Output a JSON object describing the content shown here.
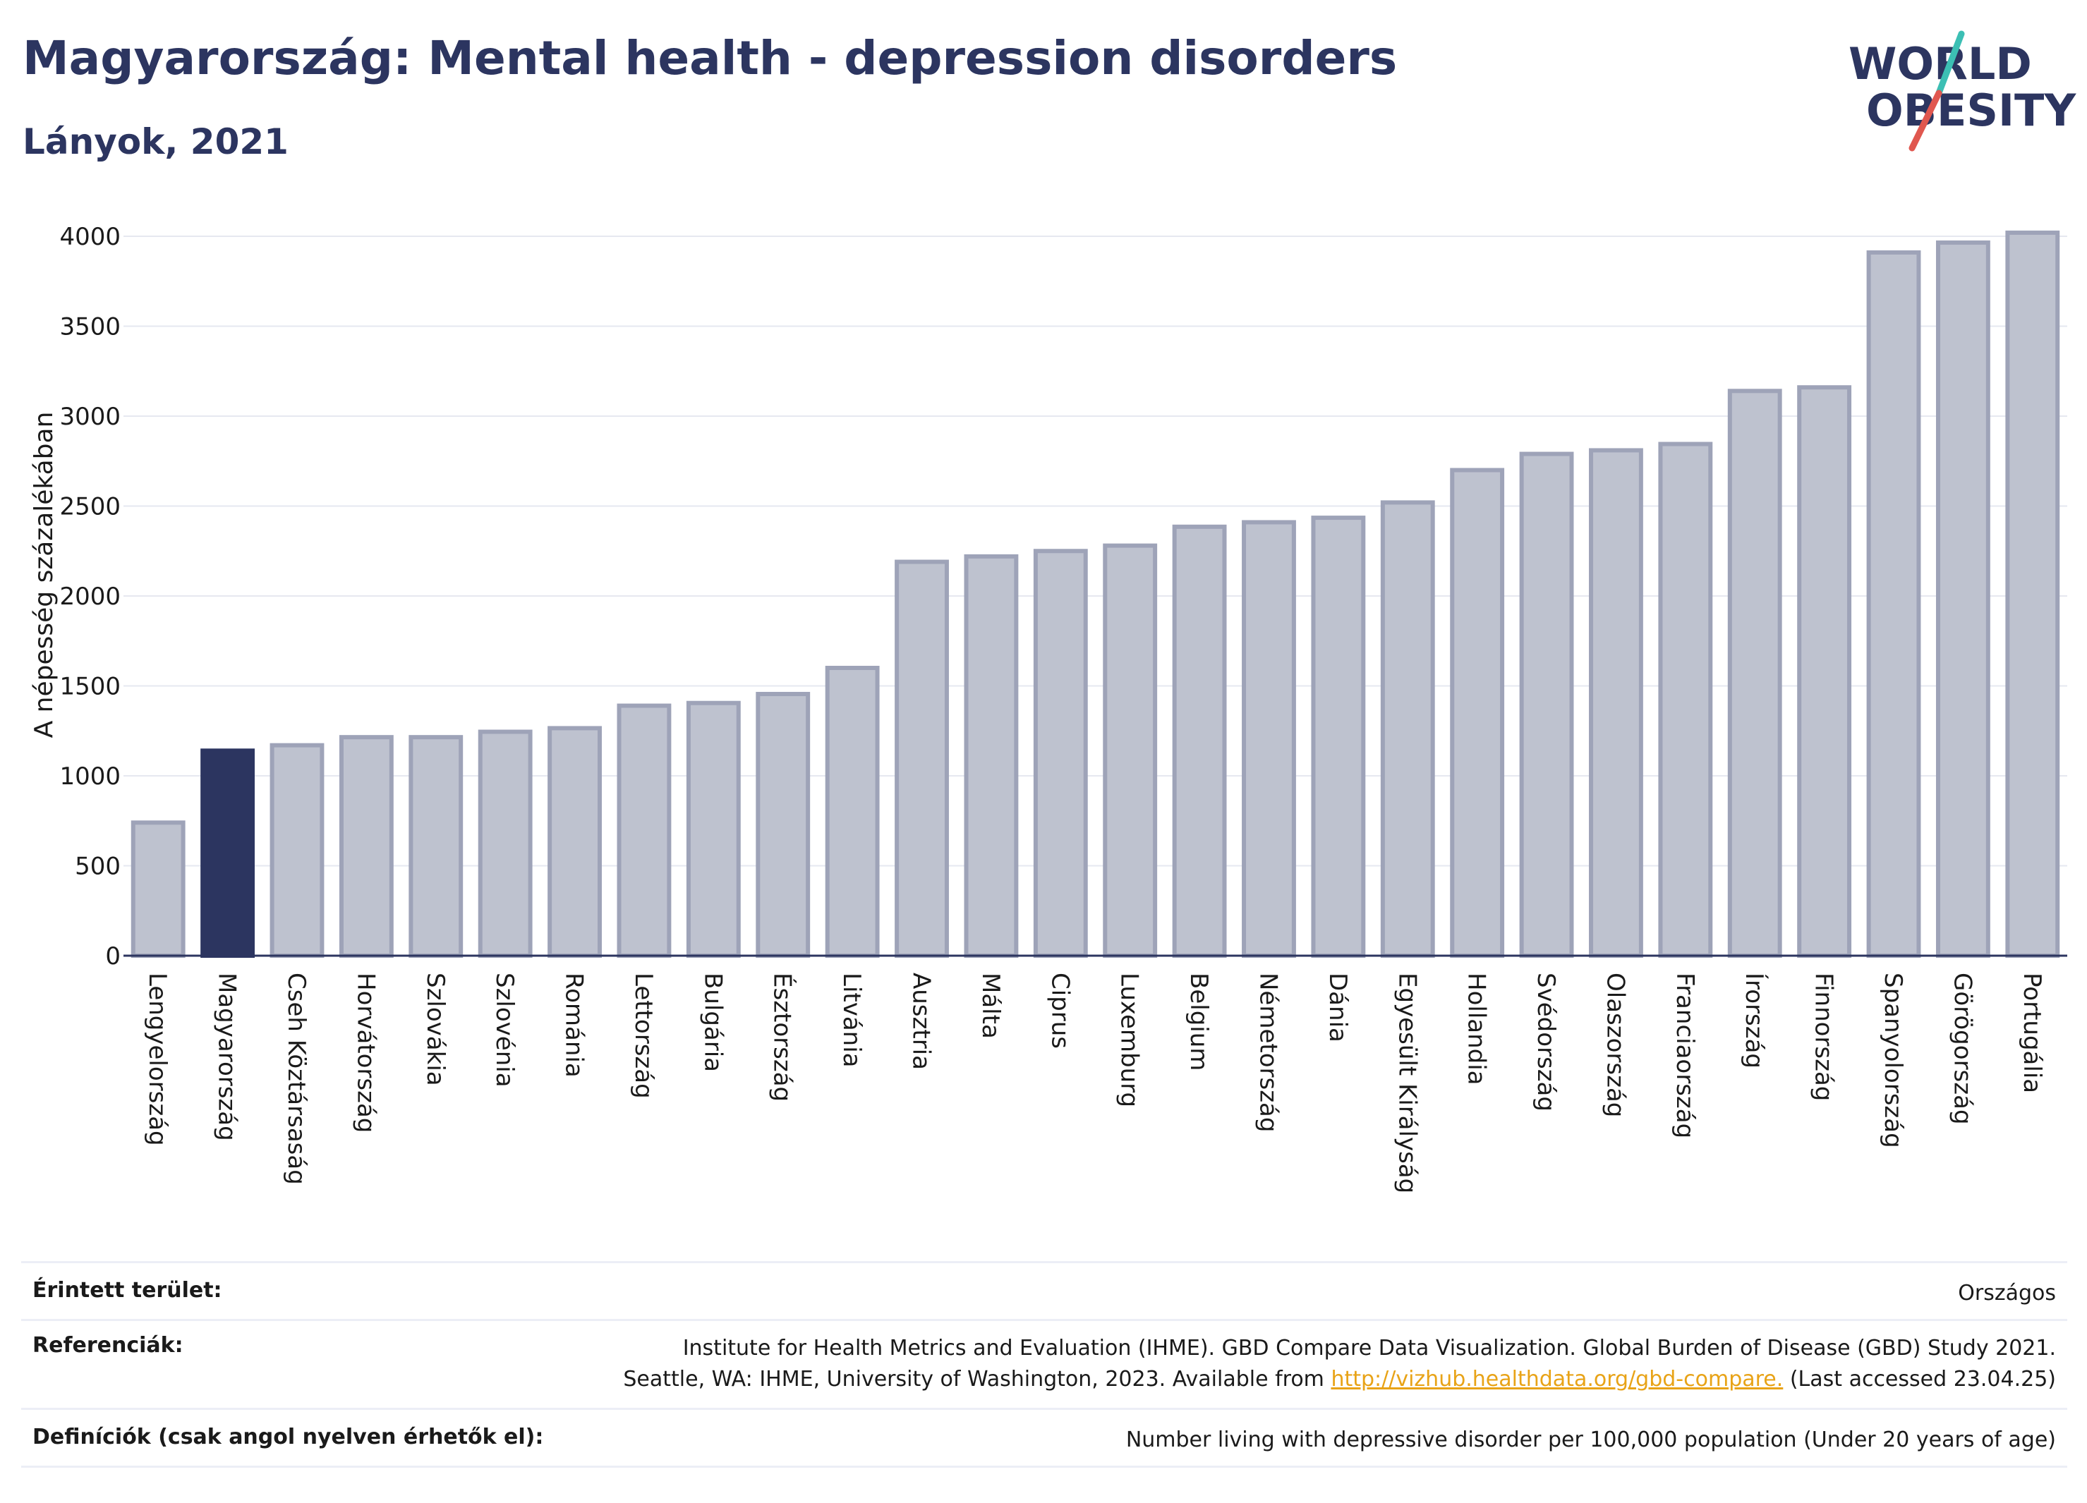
{
  "header": {
    "title": "Magyarország: Mental health - depression disorders",
    "subtitle": "Lányok, 2021"
  },
  "logo": {
    "line1": "WORLD",
    "line2": "OBESITY",
    "accent_teal": "#3cbfb4",
    "accent_red": "#e0574f",
    "text_color": "#2c3560"
  },
  "chart_data": {
    "type": "bar",
    "ylabel": "A népesség százalékában",
    "xlabel": "",
    "ylim": [
      0,
      4200
    ],
    "yticks": [
      0,
      500,
      1000,
      1500,
      2000,
      2500,
      3000,
      3500,
      4000
    ],
    "grid": true,
    "highlight_category": "Magyarország",
    "colors": {
      "default": "#bec2cf",
      "default_border": "#9ea3b8",
      "highlight": "#2c3560"
    },
    "categories": [
      "Lengyelország",
      "Magyarország",
      "Cseh Köztársaság",
      "Horvátország",
      "Szlovákia",
      "Szlovénia",
      "Románia",
      "Lettország",
      "Bulgária",
      "Észtország",
      "Litvánia",
      "Ausztria",
      "Málta",
      "Ciprus",
      "Luxemburg",
      "Belgium",
      "Németország",
      "Dánia",
      "Egyesült Királyság",
      "Hollandia",
      "Svédország",
      "Olaszország",
      "Franciaország",
      "Írország",
      "Finnország",
      "Spanyolország",
      "Görögország",
      "Portugália"
    ],
    "values": [
      740,
      1140,
      1170,
      1215,
      1215,
      1245,
      1265,
      1390,
      1405,
      1455,
      1600,
      2190,
      2220,
      2250,
      2280,
      2385,
      2410,
      2435,
      2520,
      2700,
      2790,
      2810,
      2845,
      3140,
      3160,
      3910,
      3965,
      4020
    ]
  },
  "footer": {
    "area_label": "Érintett terület:",
    "area_value": "Országos",
    "ref_label": "Referenciák:",
    "ref_line1": "Institute for Health Metrics and Evaluation (IHME). GBD Compare Data Visualization. Global Burden of Disease (GBD) Study 2021.",
    "ref_line2_pre": "Seattle, WA: IHME, University of Washington, 2023. Available from ",
    "ref_link": "http://vizhub.healthdata.org/gbd-compare.",
    "ref_line2_post": " (Last accessed 23.04.25)",
    "def_label": "Definíciók (csak angol nyelven érhetők el):",
    "def_value": "Number living with depressive disorder per 100,000 population (Under 20 years of age)"
  }
}
